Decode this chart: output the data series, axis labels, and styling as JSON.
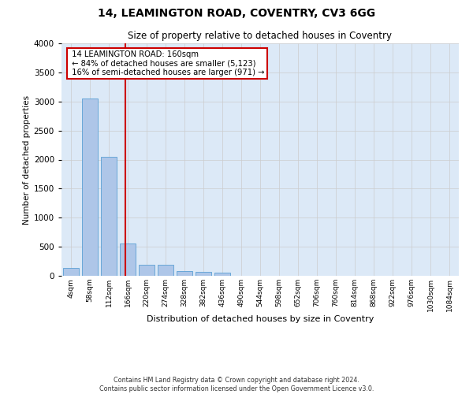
{
  "title": "14, LEAMINGTON ROAD, COVENTRY, CV3 6GG",
  "subtitle": "Size of property relative to detached houses in Coventry",
  "xlabel": "Distribution of detached houses by size in Coventry",
  "ylabel": "Number of detached properties",
  "footer_line1": "Contains HM Land Registry data © Crown copyright and database right 2024.",
  "footer_line2": "Contains public sector information licensed under the Open Government Licence v3.0.",
  "bin_labels": [
    "4sqm",
    "58sqm",
    "112sqm",
    "166sqm",
    "220sqm",
    "274sqm",
    "328sqm",
    "382sqm",
    "436sqm",
    "490sqm",
    "544sqm",
    "598sqm",
    "652sqm",
    "706sqm",
    "760sqm",
    "814sqm",
    "868sqm",
    "922sqm",
    "976sqm",
    "1030sqm",
    "1084sqm"
  ],
  "bar_values": [
    130,
    3050,
    2050,
    550,
    190,
    190,
    75,
    65,
    55,
    0,
    0,
    0,
    0,
    0,
    0,
    0,
    0,
    0,
    0,
    0,
    0
  ],
  "bar_color": "#aec6e8",
  "bar_edge_color": "#5a9fd4",
  "property_label": "14 LEAMINGTON ROAD: 160sqm",
  "pct_smaller": 84,
  "count_smaller": 5123,
  "pct_larger": 16,
  "count_larger": 971,
  "vline_bin_float": 2.889,
  "vline_color": "#cc0000",
  "annotation_box_color": "#cc0000",
  "ylim": [
    0,
    4000
  ],
  "yticks": [
    0,
    500,
    1000,
    1500,
    2000,
    2500,
    3000,
    3500,
    4000
  ],
  "grid_color": "#cccccc",
  "background_color": "#ffffff",
  "plot_bg_color": "#dce9f7"
}
